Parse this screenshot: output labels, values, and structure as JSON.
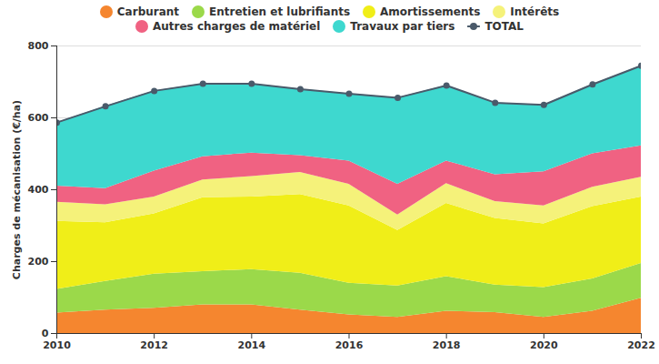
{
  "chart_data": {
    "type": "area",
    "stacked": true,
    "grid": true,
    "legend": "top",
    "y_label": "Charges de mécanisation (€/ha)",
    "x": [
      2010,
      2011,
      2012,
      2013,
      2014,
      2015,
      2016,
      2017,
      2018,
      2019,
      2020,
      2021,
      2022
    ],
    "xlim": [
      2010,
      2022
    ],
    "xticks": [
      2010,
      2012,
      2014,
      2016,
      2018,
      2020,
      2022
    ],
    "ylim": [
      0,
      800
    ],
    "yticks": [
      0,
      200,
      400,
      600,
      800
    ],
    "series": [
      {
        "name": "Carburant",
        "color": "#f5862f",
        "type": "area",
        "values": [
          57,
          65,
          70,
          80,
          80,
          65,
          52,
          45,
          62,
          58,
          45,
          62,
          98
        ]
      },
      {
        "name": "Entretien et lubrifiants",
        "color": "#9bd94a",
        "type": "area",
        "values": [
          66,
          80,
          95,
          92,
          98,
          103,
          88,
          87,
          96,
          77,
          83,
          90,
          97
        ]
      },
      {
        "name": "Amortissements",
        "color": "#f0ee18",
        "type": "area",
        "values": [
          189,
          163,
          168,
          206,
          202,
          219,
          215,
          155,
          204,
          185,
          177,
          201,
          185
        ]
      },
      {
        "name": "Intérêts",
        "color": "#f5f27a",
        "type": "area",
        "values": [
          53,
          50,
          47,
          49,
          57,
          61,
          60,
          43,
          55,
          47,
          50,
          54,
          55
        ]
      },
      {
        "name": "Autres charges de matériel",
        "color": "#f06282",
        "type": "area",
        "values": [
          45,
          45,
          72,
          65,
          65,
          47,
          65,
          85,
          63,
          75,
          95,
          93,
          87
        ]
      },
      {
        "name": "Travaux par tiers",
        "color": "#3ed8cf",
        "type": "area",
        "values": [
          177,
          229,
          223,
          203,
          193,
          185,
          187,
          241,
          210,
          200,
          186,
          193,
          223
        ]
      },
      {
        "name": "TOTAL",
        "color": "#4a5a6a",
        "type": "line",
        "marker": "circle",
        "values": [
          587,
          632,
          675,
          695,
          695,
          680,
          667,
          656,
          690,
          642,
          636,
          693,
          745
        ]
      }
    ]
  }
}
